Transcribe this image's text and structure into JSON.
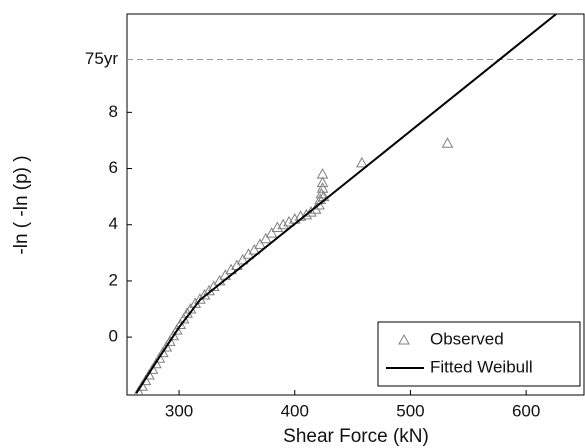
{
  "chart_data": {
    "type": "scatter",
    "xlabel": "Shear Force (kN)",
    "ylabel": "-ln ( -ln (p) )",
    "xlim": [
      255,
      650
    ],
    "ylim": [
      -2.06,
      11.5
    ],
    "xticks": [
      300,
      400,
      500,
      600
    ],
    "yticks": [
      0,
      2,
      4,
      6,
      8
    ],
    "reference_line": {
      "value": 9.88,
      "label": "75yr",
      "style": "dashed",
      "color": "#999999"
    },
    "legend": "lower right",
    "series": [
      {
        "name": "Observed",
        "kind": "markers",
        "marker": "triangle",
        "color": "#808080",
        "x": [
          265,
          268,
          271,
          274,
          277,
          280,
          283,
          286,
          289,
          292,
          295,
          298,
          301,
          304,
          307,
          310,
          314,
          318,
          322,
          326,
          330,
          335,
          340,
          345,
          350,
          355,
          360,
          365,
          370,
          375,
          380,
          385,
          390,
          395,
          400,
          405,
          410,
          414,
          418,
          421,
          422,
          423,
          424,
          424,
          424,
          425,
          458,
          532
        ],
        "values": [
          -1.95,
          -1.75,
          -1.55,
          -1.35,
          -1.15,
          -0.95,
          -0.75,
          -0.55,
          -0.35,
          -0.15,
          0.05,
          0.25,
          0.45,
          0.65,
          0.85,
          1.0,
          1.2,
          1.35,
          1.5,
          1.65,
          1.8,
          2.0,
          2.2,
          2.4,
          2.55,
          2.75,
          2.95,
          3.1,
          3.3,
          3.5,
          3.7,
          3.9,
          4.0,
          4.1,
          4.2,
          4.3,
          4.35,
          4.45,
          4.55,
          4.7,
          4.9,
          5.1,
          5.3,
          5.5,
          5.8,
          5.0,
          6.2,
          6.9
        ]
      },
      {
        "name": "Fitted Weibull",
        "kind": "line",
        "color": "#000000",
        "x": [
          263,
          280,
          300,
          318,
          626
        ],
        "values": [
          -2.0,
          -0.9,
          0.35,
          1.32,
          11.5
        ]
      }
    ]
  }
}
